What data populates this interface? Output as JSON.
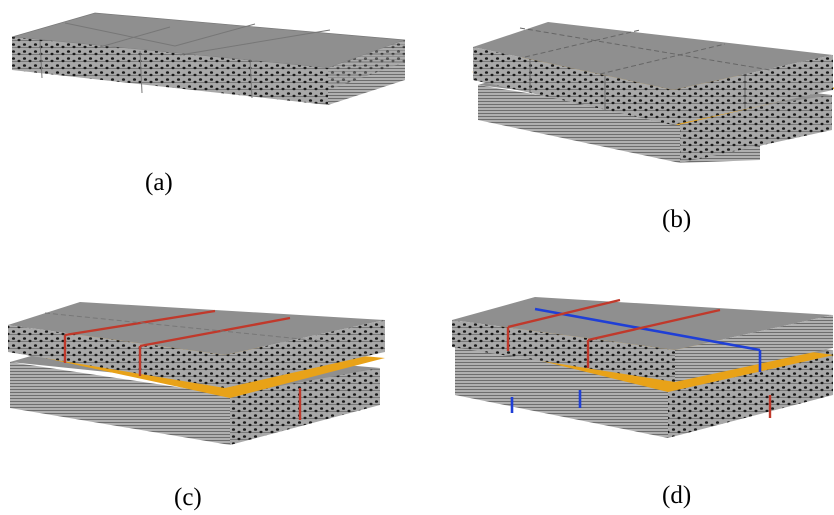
{
  "panels": [
    {
      "id": "a",
      "label": "(a)"
    },
    {
      "id": "b",
      "label": "(b)"
    },
    {
      "id": "c",
      "label": "(c)"
    },
    {
      "id": "d",
      "label": "(d)"
    }
  ],
  "colors": {
    "block_top": "#8f8f8f",
    "block_edge": "#7a7a7a",
    "block_side": "#a9a9a9",
    "block_stripe": "#6e6e6e",
    "pore": "#1a1a1a",
    "interlayer": "#e8a218",
    "joint_red": "#c0392b",
    "joint_blue": "#1f3fd6",
    "background": "#ffffff"
  }
}
